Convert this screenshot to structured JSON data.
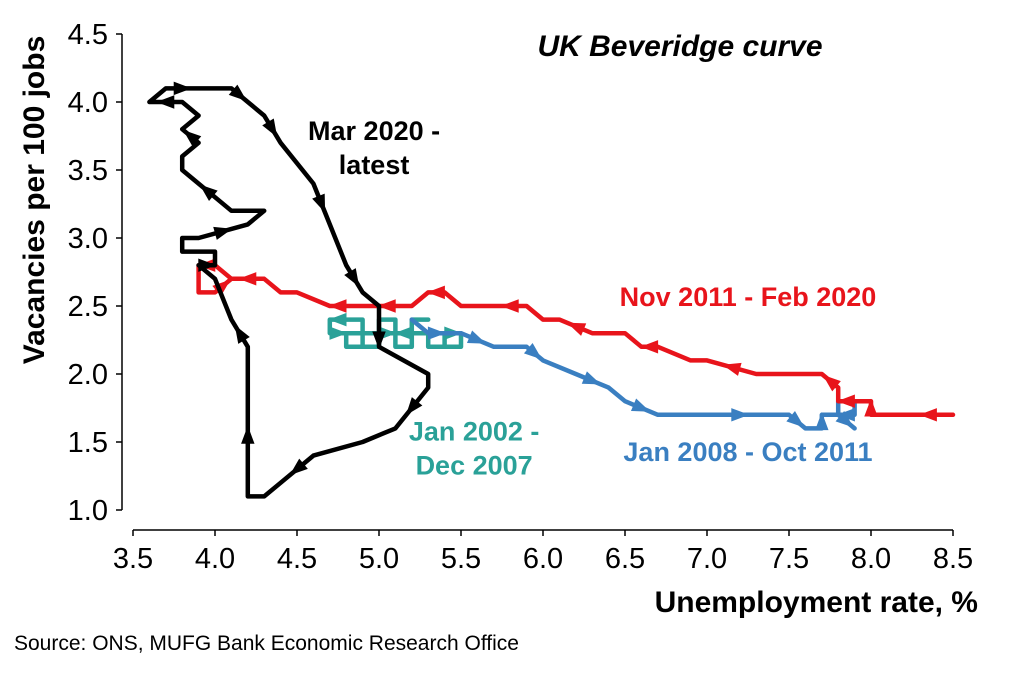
{
  "chart_data": {
    "type": "line",
    "title": "UK Beveridge curve",
    "xlabel": "Unemployment rate, %",
    "ylabel": "Vacancies per 100 jobs",
    "xlim": [
      3.5,
      8.5
    ],
    "ylim": [
      1.0,
      4.5
    ],
    "x_ticks": [
      "3.5",
      "4.0",
      "4.5",
      "5.0",
      "5.5",
      "6.0",
      "6.5",
      "7.0",
      "7.5",
      "8.0",
      "8.5"
    ],
    "y_ticks": [
      "1.0",
      "1.5",
      "2.0",
      "2.5",
      "3.0",
      "3.5",
      "4.0",
      "4.5"
    ],
    "grid": false,
    "legend": "none",
    "series": [
      {
        "name": "Jan 2002 - Dec 2007",
        "color": "#2aa198",
        "x": [
          4.7,
          4.7,
          4.8,
          4.8,
          4.9,
          4.9,
          5.0,
          5.0,
          5.1,
          5.1,
          5.2,
          5.2,
          5.3,
          5.3,
          5.4,
          5.4,
          5.5,
          5.5,
          5.4,
          5.4,
          5.3,
          5.3,
          5.2,
          5.2,
          5.1,
          5.1,
          5.0,
          5.0,
          4.9,
          4.9,
          4.8,
          4.8,
          4.7,
          4.7,
          4.8,
          4.8,
          4.9,
          4.9,
          5.0,
          5.0,
          5.1,
          5.1,
          5.2,
          5.2,
          5.3,
          5.3,
          5.2
        ],
        "y": [
          2.4,
          2.3,
          2.3,
          2.2,
          2.2,
          2.3,
          2.3,
          2.3,
          2.3,
          2.2,
          2.2,
          2.3,
          2.3,
          2.2,
          2.2,
          2.3,
          2.3,
          2.2,
          2.2,
          2.3,
          2.3,
          2.3,
          2.3,
          2.3,
          2.3,
          2.4,
          2.4,
          2.3,
          2.3,
          2.4,
          2.4,
          2.4,
          2.4,
          2.3,
          2.3,
          2.3,
          2.3,
          2.2,
          2.2,
          2.3,
          2.3,
          2.3,
          2.3,
          2.4,
          2.4,
          2.4,
          2.4
        ],
        "arrow_indices": [
          2,
          8,
          16,
          24,
          32,
          40
        ]
      },
      {
        "name": "Jan 2008 - Oct 2011",
        "color": "#3a7fc1",
        "x": [
          5.2,
          5.3,
          5.4,
          5.5,
          5.7,
          5.9,
          6.0,
          6.2,
          6.4,
          6.5,
          6.7,
          6.9,
          7.1,
          7.3,
          7.5,
          7.6,
          7.7,
          7.7,
          7.8,
          7.8,
          7.9,
          7.9,
          7.8,
          7.7,
          7.8,
          7.9,
          7.9
        ],
        "y": [
          2.4,
          2.3,
          2.3,
          2.3,
          2.2,
          2.2,
          2.1,
          2.0,
          1.9,
          1.8,
          1.7,
          1.7,
          1.7,
          1.7,
          1.7,
          1.6,
          1.6,
          1.7,
          1.7,
          1.8,
          1.8,
          1.7,
          1.7,
          1.7,
          1.7,
          1.6,
          1.6
        ],
        "arrow_indices": [
          2,
          4,
          6,
          8,
          10,
          13,
          15,
          17,
          22,
          25
        ]
      },
      {
        "name": "Nov 2011 - Feb 2020",
        "color": "#e8141b",
        "x": [
          8.5,
          8.2,
          8.0,
          8.0,
          7.9,
          7.8,
          7.8,
          7.7,
          7.5,
          7.3,
          7.0,
          6.9,
          6.7,
          6.6,
          6.5,
          6.3,
          6.1,
          6.0,
          5.9,
          5.7,
          5.5,
          5.4,
          5.3,
          5.2,
          5.1,
          5.0,
          4.8,
          4.7,
          4.5,
          4.4,
          4.3,
          4.1,
          4.0,
          3.9,
          3.9,
          4.0,
          4.1,
          4.1
        ],
        "y": [
          1.7,
          1.7,
          1.7,
          1.8,
          1.8,
          1.8,
          1.9,
          2.0,
          2.0,
          2.0,
          2.1,
          2.1,
          2.2,
          2.2,
          2.3,
          2.3,
          2.4,
          2.4,
          2.5,
          2.5,
          2.5,
          2.6,
          2.6,
          2.5,
          2.5,
          2.5,
          2.5,
          2.5,
          2.6,
          2.6,
          2.7,
          2.7,
          2.8,
          2.8,
          2.6,
          2.6,
          2.7,
          2.7
        ],
        "arrow_indices": [
          1,
          3,
          5,
          7,
          10,
          13,
          16,
          19,
          22,
          25,
          27,
          31,
          33,
          36
        ]
      },
      {
        "name": "Mar 2020 - latest",
        "color": "#000000",
        "x": [
          5.0,
          5.0,
          5.0,
          5.3,
          5.3,
          5.1,
          4.9,
          4.6,
          4.4,
          4.3,
          4.2,
          4.2,
          4.2,
          4.2,
          4.1,
          4.0,
          3.9,
          4.0,
          4.0,
          3.8,
          3.8,
          3.9,
          4.2,
          4.3,
          4.1,
          4.0,
          3.9,
          3.8,
          3.8,
          3.9,
          3.8,
          3.9,
          3.8,
          3.6,
          3.7,
          3.9,
          4.1,
          4.2,
          4.3,
          4.4,
          4.6,
          4.7,
          4.8,
          4.9,
          5.0
        ],
        "y": [
          2.5,
          2.3,
          2.2,
          2.0,
          1.9,
          1.6,
          1.5,
          1.4,
          1.2,
          1.1,
          1.1,
          1.4,
          1.7,
          2.2,
          2.4,
          2.7,
          2.8,
          2.8,
          2.9,
          2.9,
          3.0,
          3.0,
          3.1,
          3.2,
          3.2,
          3.3,
          3.4,
          3.5,
          3.6,
          3.7,
          3.8,
          3.9,
          4.0,
          4.0,
          4.1,
          4.1,
          4.1,
          4.0,
          3.9,
          3.7,
          3.4,
          3.1,
          2.8,
          2.6,
          2.5
        ],
        "arrow_indices": [
          2,
          5,
          8,
          12,
          14,
          17,
          22,
          26,
          30,
          33,
          35,
          37,
          39,
          41,
          43
        ]
      }
    ],
    "annotations": [
      {
        "text_lines": [
          "Mar 2020 -",
          "latest"
        ],
        "color": "#000000",
        "x": 4.97,
        "y": 3.72
      },
      {
        "text_lines": [
          "Nov 2011 - Feb 2020"
        ],
        "color": "#e8141b",
        "x": 7.25,
        "y": 2.5
      },
      {
        "text_lines": [
          "Jan 2002 -",
          "Dec 2007"
        ],
        "color": "#2aa198",
        "x": 5.58,
        "y": 1.51
      },
      {
        "text_lines": [
          "Jan 2008 - Oct 2011"
        ],
        "color": "#3a7fc1",
        "x": 7.25,
        "y": 1.36
      }
    ]
  },
  "source": "Source: ONS, MUFG Bank Economic Research Office"
}
